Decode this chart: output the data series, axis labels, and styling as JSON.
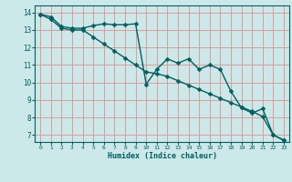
{
  "xlabel": "Humidex (Indice chaleur)",
  "background_color": "#cce8e8",
  "grid_color": "#e09090",
  "line_color": "#006060",
  "xlim": [
    -0.5,
    23.5
  ],
  "ylim": [
    6.6,
    14.4
  ],
  "xticks": [
    0,
    1,
    2,
    3,
    4,
    5,
    6,
    7,
    8,
    9,
    10,
    11,
    12,
    13,
    14,
    15,
    16,
    17,
    18,
    19,
    20,
    21,
    22,
    23
  ],
  "yticks": [
    7,
    8,
    9,
    10,
    11,
    12,
    13,
    14
  ],
  "line1_x": [
    0,
    1,
    2,
    3,
    4,
    5,
    6,
    7,
    8,
    9,
    10,
    11,
    12,
    13,
    14,
    15,
    16,
    17,
    18,
    19,
    20,
    21,
    22,
    23
  ],
  "line1_y": [
    13.9,
    13.75,
    13.2,
    13.1,
    13.1,
    13.25,
    13.35,
    13.3,
    13.3,
    13.35,
    9.9,
    10.75,
    11.35,
    11.1,
    11.35,
    10.75,
    11.0,
    10.75,
    9.5,
    8.55,
    8.25,
    8.5,
    7.0,
    6.7
  ],
  "line2_x": [
    0,
    1,
    2,
    3,
    4,
    5,
    6,
    7,
    8,
    9,
    10,
    11,
    12,
    13,
    14,
    15,
    16,
    17,
    18,
    19,
    20,
    21,
    22,
    23
  ],
  "line2_y": [
    13.9,
    13.6,
    13.1,
    13.0,
    13.0,
    12.6,
    12.2,
    11.8,
    11.4,
    11.0,
    10.6,
    10.5,
    10.35,
    10.1,
    9.85,
    9.6,
    9.35,
    9.1,
    8.85,
    8.6,
    8.35,
    8.05,
    7.0,
    6.7
  ],
  "marker_size": 2.5,
  "line_width": 1.0
}
